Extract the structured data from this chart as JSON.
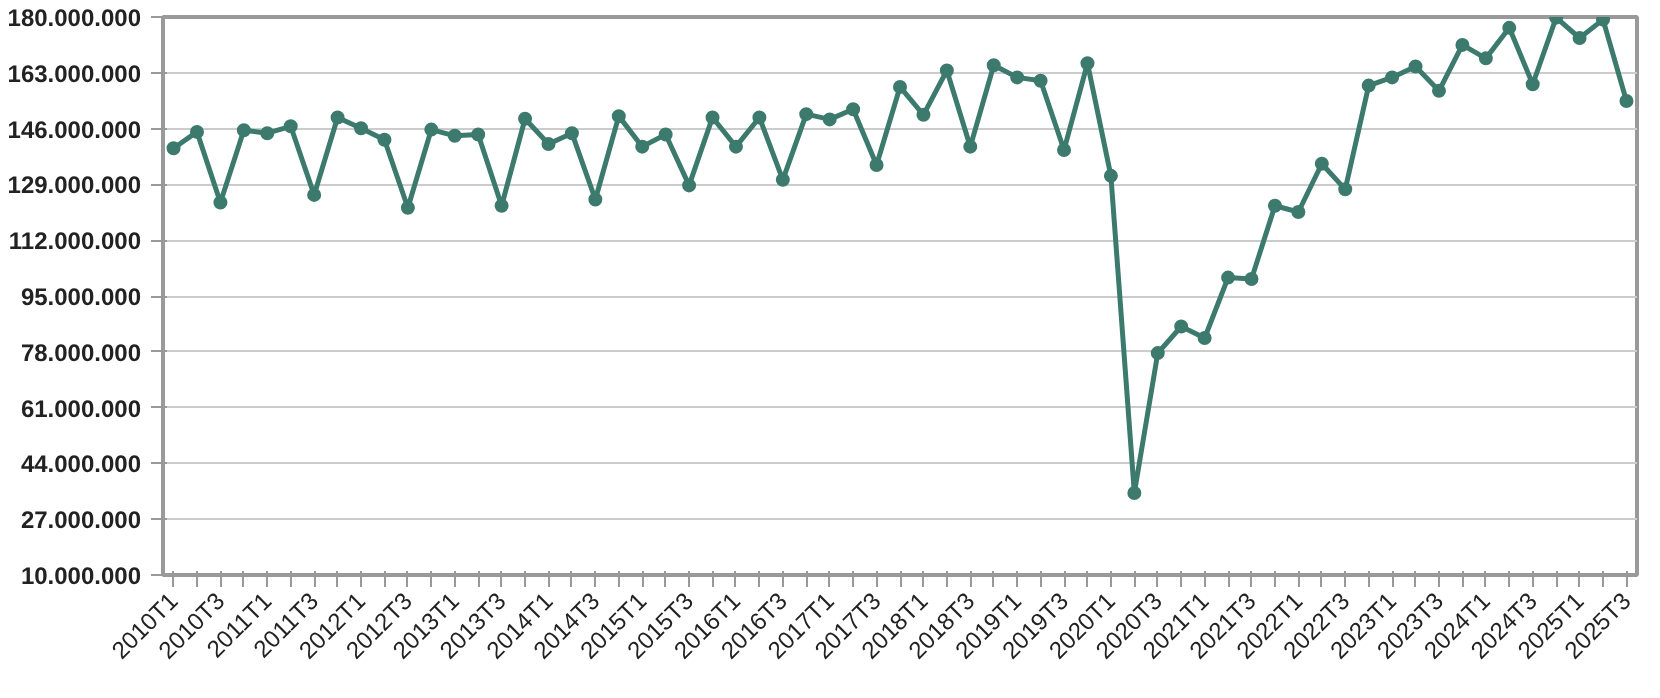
{
  "chart_data": {
    "type": "line",
    "categories": [
      "2010T1",
      null,
      "2010T3",
      null,
      "2011T1",
      null,
      "2011T3",
      null,
      "2012T1",
      null,
      "2012T3",
      null,
      "2013T1",
      null,
      "2013T3",
      null,
      "2014T1",
      null,
      "2014T3",
      null,
      "2015T1",
      null,
      "2015T3",
      null,
      "2016T1",
      null,
      "2016T3",
      null,
      "2017T1",
      null,
      "2017T3",
      null,
      "2018T1",
      null,
      "2018T3",
      null,
      "2019T1",
      null,
      "2019T3",
      null,
      "2020T1",
      null,
      "2020T3",
      null,
      "2021T1",
      null,
      "2021T3",
      null,
      "2022T1",
      null,
      "2022T3",
      null,
      "2023T1",
      null,
      "2023T3",
      null,
      "2024T1",
      null,
      "2024T3",
      null,
      "2025T1",
      null,
      "2025T3"
    ],
    "series": [
      {
        "color": "#3d7a6e",
        "values": [
          140000000,
          145000000,
          123500000,
          145500000,
          144600000,
          146700000,
          125800000,
          149400000,
          146100000,
          142600000,
          121900000,
          145700000,
          143800000,
          144200000,
          122500000,
          149000000,
          141300000,
          144600000,
          124400000,
          149800000,
          140500000,
          144200000,
          128700000,
          149400000,
          140500000,
          149400000,
          130400000,
          150400000,
          148800000,
          151900000,
          134900000,
          158700000,
          150200000,
          163700000,
          140500000,
          165300000,
          161600000,
          160600000,
          139500000,
          165900000,
          131600000,
          35000000,
          77600000,
          85700000,
          82200000,
          100600000,
          100200000,
          122500000,
          120600000,
          135300000,
          127500000,
          159100000,
          161600000,
          164900000,
          157500000,
          171500000,
          167400000,
          176700000,
          159500000,
          179800000,
          173600000,
          179200000,
          154400000
        ]
      }
    ],
    "ylim": [
      10000000,
      180000000
    ],
    "yticks": [
      {
        "value": 10000000,
        "label": "10.000.000"
      },
      {
        "value": 27000000,
        "label": "27.000.000"
      },
      {
        "value": 44000000,
        "label": "44.000.000"
      },
      {
        "value": 61000000,
        "label": "61.000.000"
      },
      {
        "value": 78000000,
        "label": "78.000.000"
      },
      {
        "value": 95000000,
        "label": "95.000.000"
      },
      {
        "value": 112000000,
        "label": "112.000.000"
      },
      {
        "value": 129000000,
        "label": "129.000.000"
      },
      {
        "value": 146000000,
        "label": "146.000.000"
      },
      {
        "value": 163000000,
        "label": "163.000.000"
      },
      {
        "value": 180000000,
        "label": "180.000.000"
      }
    ],
    "grid": "y",
    "marker": "circle",
    "line_style": "solid"
  }
}
